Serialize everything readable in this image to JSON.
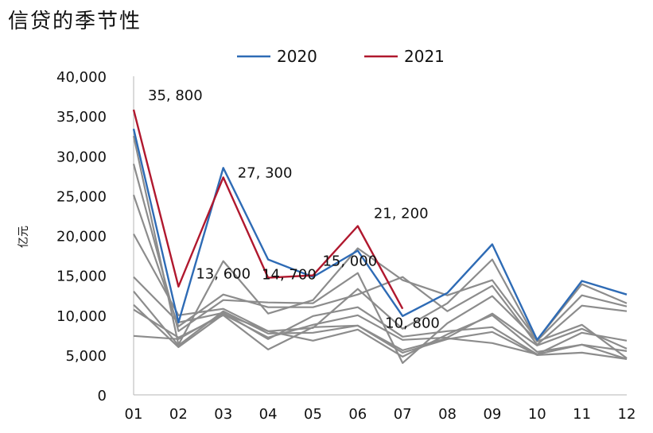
{
  "chart_data": {
    "type": "line",
    "title": "信贷的季节性",
    "ylabel": "亿元",
    "xlabel": "",
    "categories": [
      "01",
      "02",
      "03",
      "04",
      "05",
      "06",
      "07",
      "08",
      "09",
      "10",
      "11",
      "12"
    ],
    "yticks": [
      "0",
      "5,000",
      "10,000",
      "15,000",
      "20,000",
      "25,000",
      "30,000",
      "35,000",
      "40,000"
    ],
    "ylim": [
      0,
      40000
    ],
    "grid": false,
    "legend": {
      "position": "top-center",
      "entries": [
        "2020",
        "2021"
      ]
    },
    "colors": {
      "2020": "#2e6bb5",
      "2021": "#b0182e",
      "history": "#8c8c8c"
    },
    "series": [
      {
        "name": "2020",
        "values": [
          33400,
          9100,
          28500,
          17000,
          14800,
          18100,
          9900,
          12800,
          18900,
          6900,
          14300,
          12600
        ]
      },
      {
        "name": "2021",
        "values": [
          35800,
          13600,
          27300,
          14700,
          15000,
          21200,
          10800,
          null,
          null,
          null,
          null,
          null
        ]
      }
    ],
    "history_series": [
      [
        32500,
        6300,
        16800,
        10200,
        11900,
        18400,
        14400,
        12500,
        14400,
        6900,
        13900,
        11500
      ],
      [
        29000,
        8000,
        11900,
        11600,
        11500,
        15300,
        4000,
        9000,
        12400,
        6800,
        12500,
        11100
      ],
      [
        25100,
        8600,
        12600,
        11000,
        11000,
        12600,
        14800,
        10500,
        13700,
        6300,
        11200,
        10500
      ],
      [
        20200,
        10000,
        10800,
        8000,
        8400,
        13300,
        8300,
        11500,
        17000,
        6700,
        8800,
        4600
      ],
      [
        14800,
        9100,
        10300,
        7000,
        9900,
        11000,
        7300,
        8000,
        8500,
        5100,
        6300,
        4500
      ],
      [
        13000,
        6200,
        10500,
        7700,
        7800,
        8700,
        5300,
        7000,
        7900,
        5000,
        5300,
        4500
      ],
      [
        10700,
        7200,
        10000,
        5700,
        8500,
        8700,
        5600,
        7100,
        6500,
        5100,
        7800,
        6800
      ],
      [
        7400,
        7000,
        10200,
        8000,
        6800,
        8200,
        4800,
        7600,
        10000,
        5400,
        6300,
        5500
      ],
      [
        11300,
        6000,
        10100,
        7200,
        8800,
        10000,
        6900,
        7200,
        10200,
        6200,
        8300,
        5800
      ]
    ],
    "annotations": [
      {
        "text": "35, 800",
        "series": "2021",
        "month": "01"
      },
      {
        "text": "27, 300",
        "series": "2021",
        "month": "03"
      },
      {
        "text": "21, 200",
        "series": "2021",
        "month": "06"
      },
      {
        "text": "13, 600",
        "series": "2021",
        "month": "02"
      },
      {
        "text": "14, 700",
        "series": "2021",
        "month": "04"
      },
      {
        "text": "15, 000",
        "series": "2021",
        "month": "05"
      },
      {
        "text": "10, 800",
        "series": "2021",
        "month": "07"
      }
    ]
  }
}
